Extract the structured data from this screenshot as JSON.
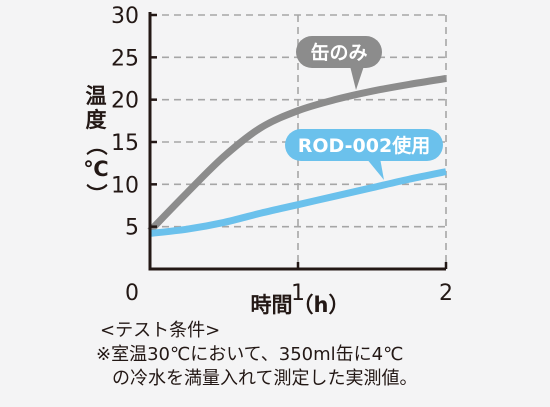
{
  "chart_data": {
    "type": "line",
    "title": "",
    "xlabel": "時間（h）",
    "ylabel": "温度（℃）",
    "ylabel_chars": [
      "温",
      "度",
      "（",
      "℃",
      "）"
    ],
    "x_ticks": [
      0,
      1,
      2
    ],
    "y_ticks": [
      5,
      10,
      15,
      20,
      25,
      30
    ],
    "xlim": [
      0,
      2
    ],
    "ylim": [
      0,
      30
    ],
    "grid": true,
    "series": [
      {
        "name": "缶のみ",
        "color": "#8c8c8c",
        "x": [
          0,
          0.25,
          0.5,
          0.75,
          1.0,
          1.25,
          1.5,
          1.75,
          2.0
        ],
        "y": [
          4.5,
          9.0,
          13.3,
          16.7,
          18.7,
          20.0,
          21.0,
          21.8,
          22.5
        ]
      },
      {
        "name": "ROD-002使用",
        "color": "#6bc1ec",
        "x": [
          0,
          0.25,
          0.5,
          0.75,
          1.0,
          1.25,
          1.5,
          1.75,
          2.0
        ],
        "y": [
          4.2,
          4.7,
          5.5,
          6.6,
          7.6,
          8.6,
          9.6,
          10.6,
          11.5
        ]
      }
    ]
  },
  "notes": {
    "heading": "<テスト条件>",
    "line1": "※室温30℃において、350ml缶に4℃",
    "line2": "の冷水を満量入れて測定した実測値。"
  }
}
